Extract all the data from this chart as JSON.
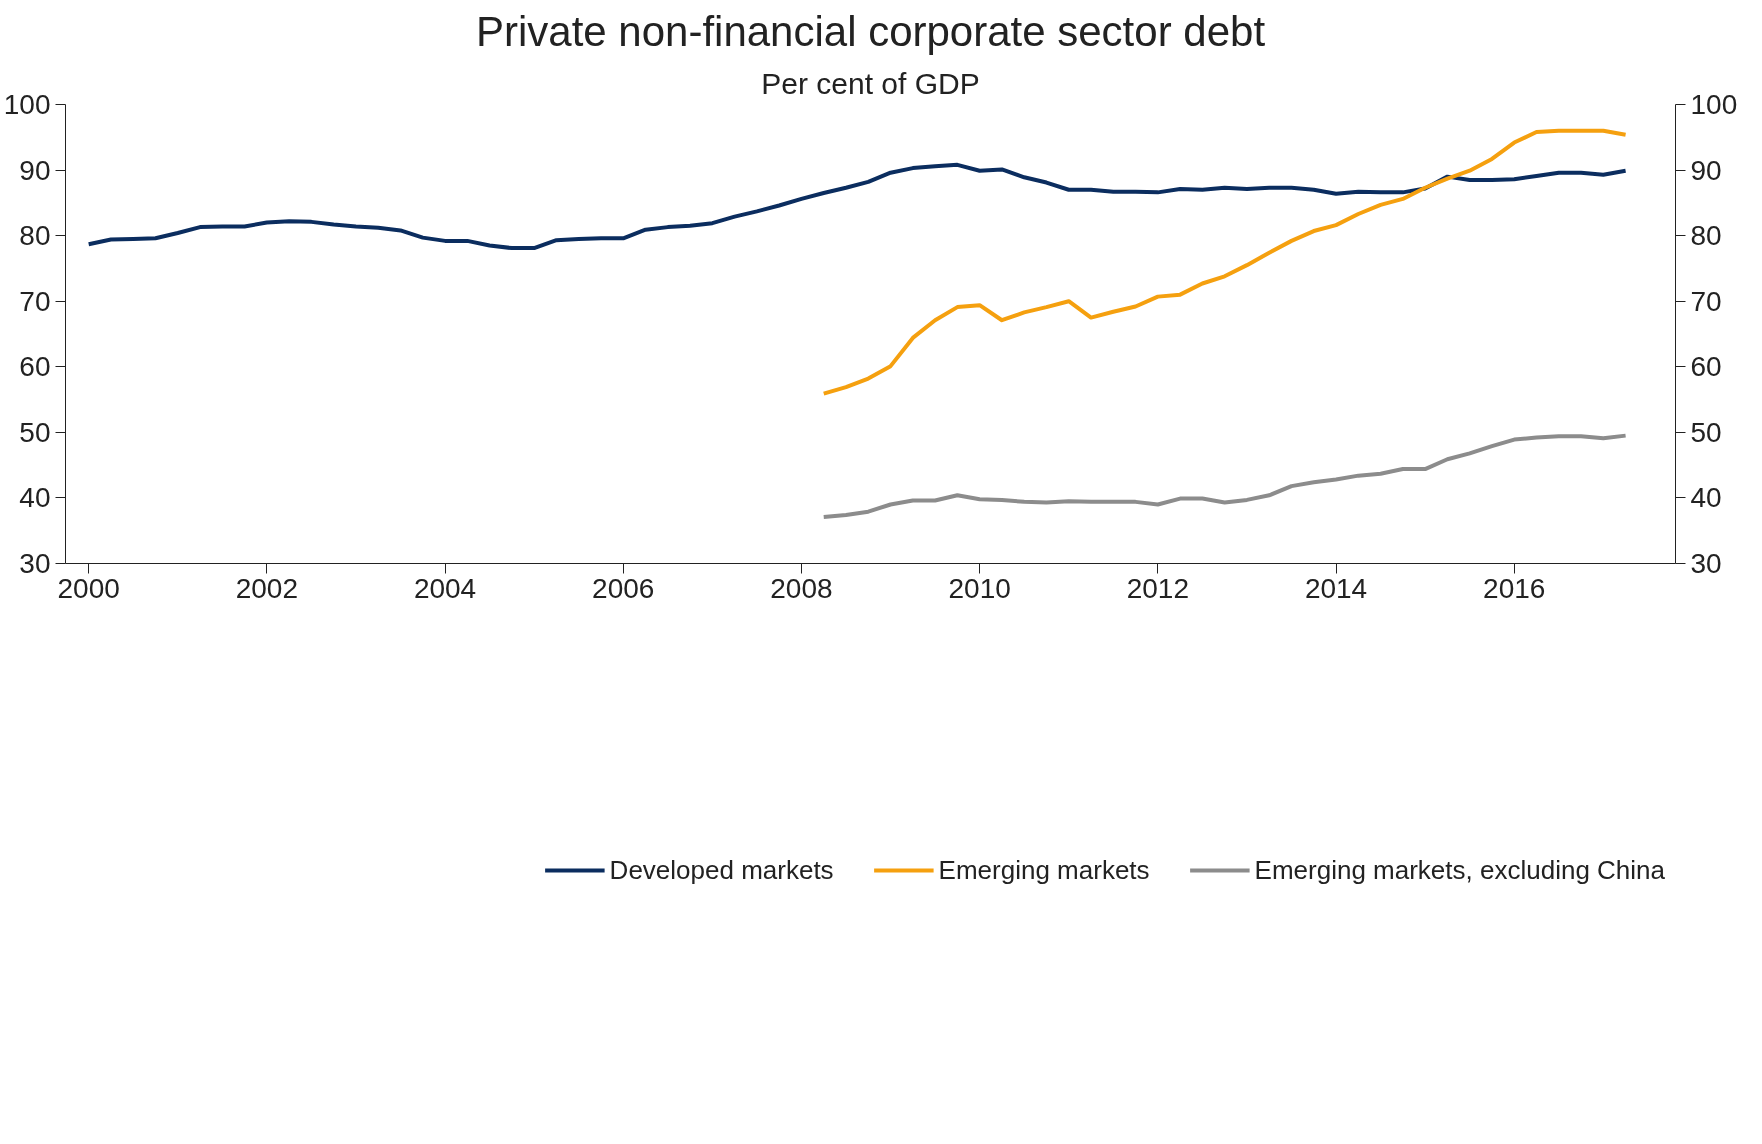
{
  "chart_data": {
    "type": "line",
    "title": "Private non-financial corporate sector debt",
    "subtitle": "Per cent of GDP",
    "x": [
      2000,
      2000.25,
      2000.5,
      2000.75,
      2001,
      2001.25,
      2001.5,
      2001.75,
      2002,
      2002.25,
      2002.5,
      2002.75,
      2003,
      2003.25,
      2003.5,
      2003.75,
      2004,
      2004.25,
      2004.5,
      2004.75,
      2005,
      2005.25,
      2005.5,
      2005.75,
      2006,
      2006.25,
      2006.5,
      2006.75,
      2007,
      2007.25,
      2007.5,
      2007.75,
      2008,
      2008.25,
      2008.5,
      2008.75,
      2009,
      2009.25,
      2009.5,
      2009.75,
      2010,
      2010.25,
      2010.5,
      2010.75,
      2011,
      2011.25,
      2011.5,
      2011.75,
      2012,
      2012.25,
      2012.5,
      2012.75,
      2013,
      2013.25,
      2013.5,
      2013.75,
      2014,
      2014.25,
      2014.5,
      2014.75,
      2015,
      2015.25,
      2015.5,
      2015.75,
      2016,
      2016.25,
      2016.5,
      2016.75,
      2017,
      2017.25
    ],
    "series": [
      {
        "name": "Developed markets",
        "color": "#0b2d5f",
        "values": [
          78.7,
          79.4,
          79.5,
          79.6,
          80.4,
          81.3,
          81.4,
          81.4,
          82.0,
          82.2,
          82.1,
          81.7,
          81.4,
          81.2,
          80.8,
          79.7,
          79.2,
          79.2,
          78.5,
          78.1,
          78.1,
          79.3,
          79.5,
          79.6,
          79.6,
          80.9,
          81.3,
          81.5,
          81.9,
          82.9,
          83.7,
          84.6,
          85.6,
          86.5,
          87.3,
          88.2,
          89.6,
          90.3,
          90.6,
          90.8,
          89.9,
          90.1,
          88.9,
          88.1,
          87.0,
          87.0,
          86.7,
          86.7,
          86.6,
          87.1,
          87.0,
          87.3,
          87.1,
          87.3,
          87.3,
          87.0,
          86.4,
          86.7,
          86.6,
          86.6,
          87.2,
          89.0,
          88.5,
          88.5,
          88.6,
          89.1,
          89.6,
          89.6,
          89.3,
          89.9
        ]
      },
      {
        "name": "Emerging markets",
        "color": "#f5a00f",
        "values": [
          null,
          null,
          null,
          null,
          null,
          null,
          null,
          null,
          null,
          null,
          null,
          null,
          null,
          null,
          null,
          null,
          null,
          null,
          null,
          null,
          null,
          null,
          null,
          null,
          null,
          null,
          null,
          null,
          null,
          null,
          null,
          null,
          null,
          55.9,
          56.9,
          58.2,
          60.1,
          64.4,
          67.1,
          69.1,
          69.4,
          67.1,
          68.3,
          69.1,
          70.0,
          67.5,
          68.4,
          69.2,
          70.7,
          71.0,
          72.7,
          73.8,
          75.5,
          77.4,
          79.2,
          80.7,
          81.6,
          83.3,
          84.7,
          85.6,
          87.3,
          88.7,
          89.9,
          91.7,
          94.2,
          95.8,
          96.0,
          96.0,
          96.0,
          95.4
        ]
      },
      {
        "name": "Emerging markets, excluding China",
        "color": "#8c8c8c",
        "values": [
          null,
          null,
          null,
          null,
          null,
          null,
          null,
          null,
          null,
          null,
          null,
          null,
          null,
          null,
          null,
          null,
          null,
          null,
          null,
          null,
          null,
          null,
          null,
          null,
          null,
          null,
          null,
          null,
          null,
          null,
          null,
          null,
          null,
          37.1,
          37.4,
          37.9,
          39.0,
          39.6,
          39.6,
          40.4,
          39.8,
          39.7,
          39.4,
          39.3,
          39.5,
          39.4,
          39.4,
          39.4,
          39.0,
          39.9,
          39.9,
          39.3,
          39.7,
          40.4,
          41.8,
          42.4,
          42.8,
          43.4,
          43.7,
          44.4,
          44.4,
          45.9,
          46.8,
          47.9,
          48.9,
          49.2,
          49.4,
          49.4,
          49.1,
          49.5
        ]
      }
    ],
    "xlim": [
      1999.74,
      2017.81
    ],
    "xticks": [
      2000,
      2002,
      2004,
      2006,
      2008,
      2010,
      2012,
      2014,
      2016
    ],
    "ylim": [
      30,
      100
    ],
    "yticks": [
      30,
      40,
      50,
      60,
      70,
      80,
      90,
      100
    ],
    "y2lim": [
      30,
      100
    ],
    "y2ticks": [
      30,
      40,
      50,
      60,
      70,
      80,
      90,
      100
    ],
    "grid": false,
    "legend": "bottom",
    "line_style": "solid",
    "marker": "none"
  }
}
